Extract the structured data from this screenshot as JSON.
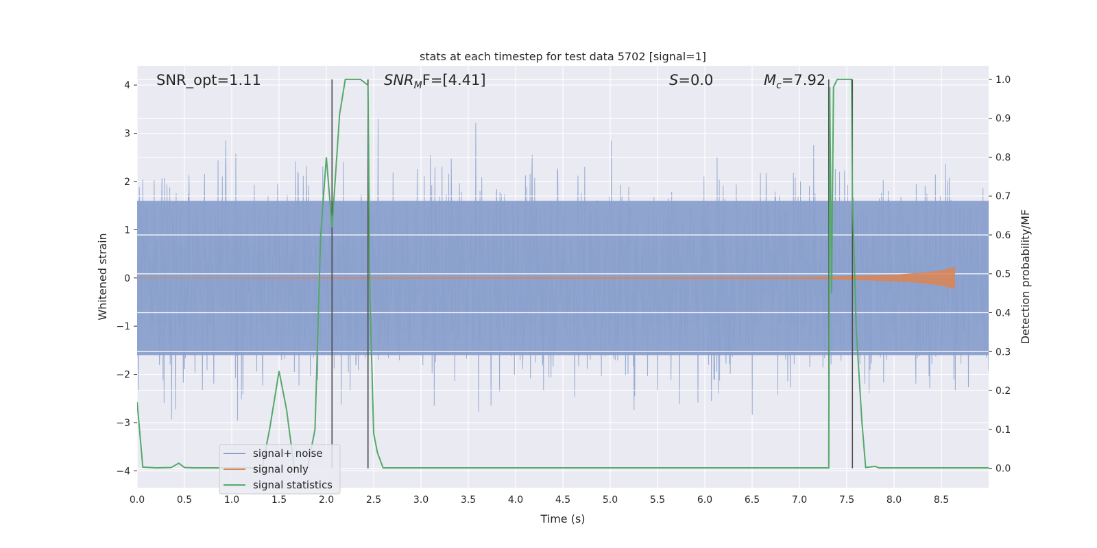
{
  "chart_data": {
    "type": "line",
    "title": "stats at each timestep for test data 5702 [signal=1]",
    "xlabel": "Time (s)",
    "ylabel": "Whitened strain",
    "y2label": "Detection probability/MF",
    "xlim": [
      0.0,
      9.0
    ],
    "ylim": [
      -4.35,
      4.4
    ],
    "y2lim": [
      -0.05,
      1.035
    ],
    "xticks": [
      "0.0",
      "0.5",
      "1.0",
      "1.5",
      "2.0",
      "2.5",
      "3.0",
      "3.5",
      "4.0",
      "4.5",
      "5.0",
      "5.5",
      "6.0",
      "6.5",
      "7.0",
      "7.5",
      "8.0",
      "8.5"
    ],
    "yticks": [
      "4",
      "3",
      "2",
      "1",
      "0",
      "−1",
      "−2",
      "−3",
      "−4"
    ],
    "y2ticks": [
      "1.0",
      "0.9",
      "0.8",
      "0.7",
      "0.6",
      "0.5",
      "0.4",
      "0.3",
      "0.2",
      "0.1",
      "0.0"
    ],
    "annotations": {
      "snr_opt": "SNR_opt=1.11",
      "snr_mf_main": "SNR",
      "snr_mf_sub": "M",
      "snr_mf_tail": "F=[4.41]",
      "s_main": "S",
      "s_tail": "=0.0",
      "mc_main": "M",
      "mc_sub": "c",
      "mc_tail": "=7.92"
    },
    "legend": {
      "placement": "lower-left",
      "entries": [
        "signal+ noise",
        "signal only",
        "signal statistics"
      ]
    },
    "grid": true,
    "colors": {
      "noise": "#8aa0cc",
      "signal": "#dd8452",
      "stats": "#55a868",
      "vline": "#4a4a4a",
      "plot_bg": "#eaeaf2",
      "grid": "#ffffff"
    },
    "series": [
      {
        "name": "signal+ noise",
        "axis": "left",
        "description_of_values": "white-noise strain, approx. uniform band between -1.6 and +1.6 with spikes reaching about +4.0 and -4.0",
        "core_range": [
          -1.6,
          1.6
        ],
        "peak_range": [
          -4.0,
          4.0
        ]
      },
      {
        "name": "signal only",
        "axis": "left",
        "x": [
          0.0,
          7.0,
          7.5,
          8.0,
          8.3,
          8.5,
          8.64
        ],
        "amplitude": [
          0.0,
          0.01,
          0.03,
          0.06,
          0.1,
          0.15,
          0.22
        ]
      },
      {
        "name": "signal statistics",
        "axis": "right",
        "x": [
          0.0,
          0.06,
          0.2,
          0.36,
          0.44,
          0.5,
          0.6,
          1.32,
          1.4,
          1.5,
          1.58,
          1.66,
          1.8,
          1.88,
          1.94,
          2.0,
          2.06,
          2.14,
          2.2,
          2.36,
          2.44,
          2.46,
          2.5,
          2.54,
          2.6,
          7.3,
          7.31,
          7.32,
          7.34,
          7.36,
          7.4,
          7.55,
          7.56,
          7.6,
          7.66,
          7.7,
          7.8,
          7.84,
          9.0
        ],
        "values": [
          0.17,
          0.003,
          0.001,
          0.002,
          0.013,
          0.002,
          0.001,
          0.001,
          0.1,
          0.25,
          0.15,
          0.001,
          0.001,
          0.1,
          0.6,
          0.8,
          0.62,
          0.91,
          1.0,
          1.0,
          0.985,
          0.45,
          0.09,
          0.04,
          0.001,
          0.001,
          0.001,
          0.98,
          0.45,
          0.98,
          1.0,
          1.0,
          0.7,
          0.36,
          0.12,
          0.002,
          0.005,
          0.001,
          0.001
        ]
      }
    ],
    "vlines": [
      {
        "x": 2.06,
        "y_from": 0.0,
        "y_to": 1.0
      },
      {
        "x": 2.44,
        "y_from": 0.0,
        "y_to": 1.0
      },
      {
        "x": 7.31,
        "y_from": 0.0,
        "y_to": 1.0
      },
      {
        "x": 7.56,
        "y_from": 0.0,
        "y_to": 1.0
      }
    ]
  }
}
